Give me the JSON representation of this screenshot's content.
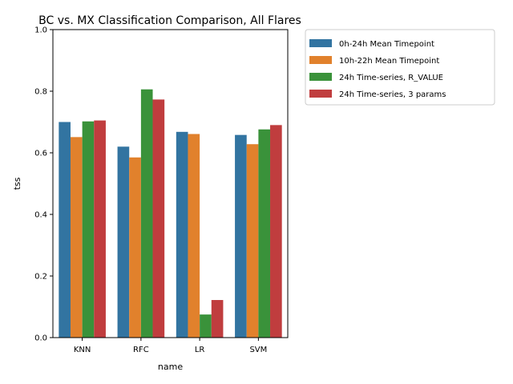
{
  "chart_data": {
    "type": "bar",
    "title": "BC vs. MX Classification Comparison, All Flares",
    "xlabel": "name",
    "ylabel": "tss",
    "ylim": [
      0,
      1.0
    ],
    "yticks": [
      "0.0",
      "0.2",
      "0.4",
      "0.6",
      "0.8",
      "1.0"
    ],
    "grid": false,
    "legend_position": "outside-right-top",
    "categories": [
      "KNN",
      "RFC",
      "LR",
      "SVM"
    ],
    "series": [
      {
        "name": "0h-24h Mean Timepoint",
        "color": "#3274a1",
        "values": [
          0.7,
          0.62,
          0.668,
          0.658
        ]
      },
      {
        "name": "10h-22h Mean Timepoint",
        "color": "#e1812c",
        "values": [
          0.651,
          0.585,
          0.661,
          0.628
        ]
      },
      {
        "name": "24h Time-series, R_VALUE",
        "color": "#3a923a",
        "values": [
          0.702,
          0.806,
          0.075,
          0.676
        ]
      },
      {
        "name": "24h Time-series, 3 params",
        "color": "#c03d3e",
        "values": [
          0.705,
          0.773,
          0.122,
          0.69
        ]
      }
    ]
  }
}
